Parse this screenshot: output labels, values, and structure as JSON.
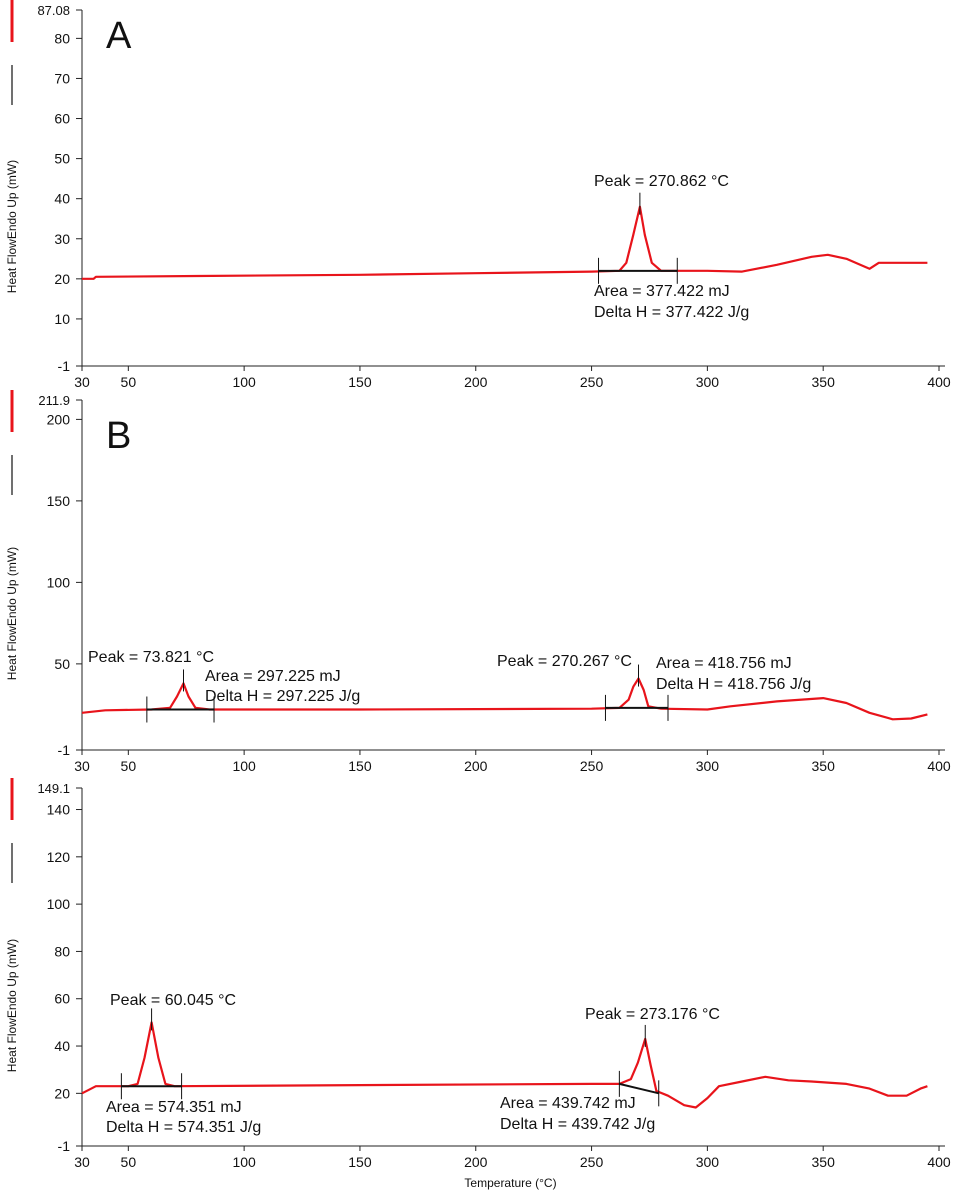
{
  "chart_data": [
    {
      "type": "line",
      "panel_label": "A",
      "ylabel": "Heat FlowEndo Up (mW)",
      "xlabel": "",
      "xlim": [
        30,
        400
      ],
      "ylim": [
        -1,
        87.08
      ],
      "xticks": [
        30,
        50,
        100,
        150,
        200,
        250,
        300,
        350,
        400
      ],
      "yticks": [
        -1,
        10,
        20,
        30,
        40,
        50,
        60,
        70,
        80
      ],
      "ymax_label": "87.08",
      "series": [
        {
          "name": "Heat Flow",
          "color": "#e8141b",
          "x": [
            30,
            35,
            36,
            80,
            150,
            200,
            250,
            262,
            265,
            268,
            270.862,
            273,
            276,
            280,
            300,
            315,
            330,
            345,
            352,
            360,
            366,
            370,
            374,
            380,
            395
          ],
          "y": [
            20,
            20,
            20.5,
            20.7,
            21,
            21.4,
            21.8,
            22,
            24,
            31,
            38,
            31,
            24,
            22,
            22,
            21.8,
            23.5,
            25.5,
            26,
            25,
            23.5,
            22.5,
            24,
            24,
            24
          ]
        }
      ],
      "annotations": [
        {
          "peak_x": 270.862,
          "peak_y": 38,
          "baseline": [
            [
              253,
              22
            ],
            [
              287,
              22
            ]
          ],
          "peak": "Peak = 270.862 °C",
          "area": "Area = 377.422 mJ",
          "delta_h": "Delta H = 377.422 J/g"
        }
      ]
    },
    {
      "type": "line",
      "panel_label": "B",
      "ylabel": "Heat FlowEndo Up (mW)",
      "xlabel": "",
      "xlim": [
        30,
        400
      ],
      "ylim": [
        -1,
        211.9
      ],
      "xticks": [
        30,
        50,
        100,
        150,
        200,
        250,
        300,
        350,
        400
      ],
      "yticks": [
        -1,
        50,
        100,
        150,
        200
      ],
      "ymax_label": "211.9",
      "series": [
        {
          "name": "Heat Flow",
          "color": "#e8141b",
          "x": [
            30,
            40,
            60,
            68,
            71,
            73.821,
            76,
            79,
            85,
            150,
            250,
            262,
            266,
            268,
            270.267,
            272.5,
            274.5,
            280,
            300,
            310,
            330,
            350,
            360,
            370,
            380,
            388,
            395
          ],
          "y": [
            20,
            21.5,
            22,
            23,
            30,
            38,
            30,
            23,
            22,
            22,
            22.5,
            23,
            28,
            36,
            41,
            34,
            24,
            22.5,
            22,
            24,
            27,
            29,
            26,
            20,
            16,
            16.5,
            19
          ]
        }
      ],
      "annotations": [
        {
          "peak_x": 73.821,
          "peak_y": 38,
          "baseline": [
            [
              58,
              22
            ],
            [
              87,
              22
            ]
          ],
          "peak": "Peak = 73.821 °C",
          "area": "Area = 297.225 mJ",
          "delta_h": "Delta H = 297.225 J/g"
        },
        {
          "peak_x": 270.267,
          "peak_y": 41,
          "baseline": [
            [
              256,
              23
            ],
            [
              283,
              23
            ]
          ],
          "peak": "Peak = 270.267 °C",
          "area": "Area = 418.756 mJ",
          "delta_h": "Delta H = 418.756 J/g"
        }
      ]
    },
    {
      "type": "line",
      "panel_label": "",
      "ylabel": "Heat FlowEndo Up (mW)",
      "xlabel": "Temperature (°C)",
      "xlim": [
        30,
        400
      ],
      "ylim": [
        -1,
        149.1
      ],
      "xticks": [
        30,
        50,
        100,
        150,
        200,
        250,
        300,
        350,
        400
      ],
      "yticks": [
        -1,
        20,
        40,
        60,
        80,
        100,
        120,
        140
      ],
      "ymax_label": "149.1",
      "series": [
        {
          "name": "Heat Flow",
          "color": "#e8141b",
          "x": [
            30,
            33,
            36,
            50,
            54,
            57,
            60.045,
            63,
            66,
            70,
            150,
            250,
            262,
            267,
            270,
            273.176,
            275.5,
            278,
            283,
            290,
            295,
            300,
            305,
            315,
            325,
            335,
            345,
            360,
            370,
            378,
            386,
            392,
            395
          ],
          "y": [
            20,
            21.5,
            23,
            23,
            24,
            35,
            50,
            35,
            24,
            23,
            23.5,
            24,
            24,
            26,
            33,
            43,
            32,
            21,
            19,
            15,
            14,
            18,
            23,
            25,
            27,
            25.5,
            25,
            24,
            22,
            19,
            19,
            22,
            23
          ]
        }
      ],
      "annotations": [
        {
          "peak_x": 60.045,
          "peak_y": 50,
          "baseline": [
            [
              47,
              23
            ],
            [
              73,
              23
            ]
          ],
          "peak": "Peak = 60.045 °C",
          "area": "Area = 574.351 mJ",
          "delta_h": "Delta H = 574.351 J/g"
        },
        {
          "peak_x": 273.176,
          "peak_y": 43,
          "baseline": [
            [
              262,
              24
            ],
            [
              279,
              20
            ]
          ],
          "peak": "Peak = 273.176 °C",
          "area": "Area = 439.742 mJ",
          "delta_h": "Delta H = 439.742 J/g"
        }
      ]
    }
  ]
}
